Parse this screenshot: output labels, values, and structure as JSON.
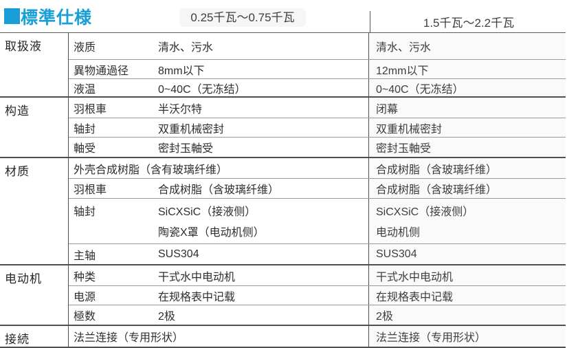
{
  "title": "標準仕様",
  "colors": {
    "accent": "#189fd8",
    "line_dark": "#4f4f4f",
    "line_light": "#999999",
    "right_column_bg": "#fafafa"
  },
  "columns": [
    "0.25千瓦～0.75千瓦",
    "1.5千瓦～2.2千瓦"
  ],
  "groups": [
    {
      "category": "取扱液",
      "rows": [
        {
          "label": "液质",
          "left": "清水、污水",
          "right": "清水、污水"
        },
        {
          "label": "異物通過径",
          "left": "8mm以下",
          "right": "12mm以下"
        },
        {
          "label": "液温",
          "left": "0~40C（无冻结）",
          "right": "0~40C（无冻结）"
        }
      ]
    },
    {
      "category": "构造",
      "rows": [
        {
          "label": "羽根車",
          "left": "半沃尔特",
          "right": "闭幕"
        },
        {
          "label": "轴封",
          "left": "双重机械密封",
          "right": "双重机械密封"
        },
        {
          "label": "軸受",
          "left": "密封玉軸受",
          "right": "密封玉軸受"
        }
      ]
    },
    {
      "category": "材质",
      "rows": [
        {
          "label": "外壳",
          "left": "合成树脂（含有玻璃纤维）",
          "right": "合成树脂（含玻璃纤维）"
        },
        {
          "label": "羽根車",
          "left": "合成树脂（含玻璃纤维）",
          "right": "合成树脂（含玻璃纤维）"
        },
        {
          "label": "轴封",
          "left": [
            "SiCXSiC（接液侧）",
            "陶瓷X罩（电动机侧）"
          ],
          "right": [
            "SiCXSiC（接液侧）",
            "电动机侧"
          ]
        },
        {
          "label": "主轴",
          "left": "SUS304",
          "right": "SUS304"
        }
      ]
    },
    {
      "category": "电动机",
      "rows": [
        {
          "label": "种类",
          "left": "干式水中电动机",
          "right": "干式水中电动机"
        },
        {
          "label": "电源",
          "left": "在规格表中记载",
          "right": "在规格表中记载"
        },
        {
          "label": "極数",
          "left": "2极",
          "right": "2极"
        }
      ]
    },
    {
      "category": "接続",
      "rows": [
        {
          "label": "",
          "left": "法兰连接（专用形状）",
          "right": "法兰连接（专用形状）"
        }
      ]
    }
  ]
}
